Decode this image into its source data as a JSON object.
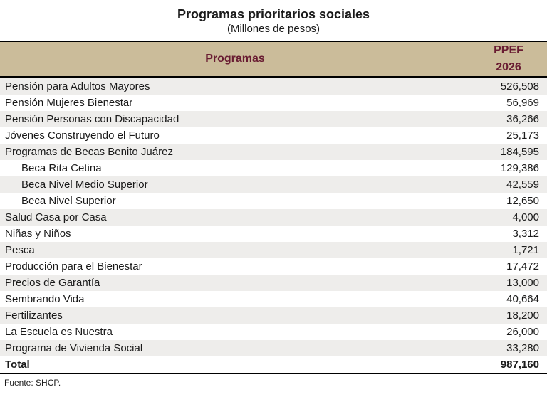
{
  "title": "Programas prioritarios sociales",
  "subtitle": "(Millones de pesos)",
  "table": {
    "header": {
      "programs_label": "Programas",
      "value_label_line1": "PPEF",
      "value_label_line2": "2026"
    },
    "rows": [
      {
        "label": "Pensión para Adultos Mayores",
        "value": "526,508",
        "indent": false
      },
      {
        "label": "Pensión Mujeres Bienestar",
        "value": "56,969",
        "indent": false
      },
      {
        "label": "Pensión Personas con Discapacidad",
        "value": "36,266",
        "indent": false
      },
      {
        "label": "Jóvenes Construyendo el Futuro",
        "value": "25,173",
        "indent": false
      },
      {
        "label": "Programas de Becas Benito Juárez",
        "value": "184,595",
        "indent": false
      },
      {
        "label": "Beca Rita Cetina",
        "value": "129,386",
        "indent": true
      },
      {
        "label": "Beca Nivel Medio Superior",
        "value": "42,559",
        "indent": true
      },
      {
        "label": "Beca Nivel Superior",
        "value": "12,650",
        "indent": true
      },
      {
        "label": "Salud Casa por Casa",
        "value": "4,000",
        "indent": false
      },
      {
        "label": "Niñas y Niños",
        "value": "3,312",
        "indent": false
      },
      {
        "label": "Pesca",
        "value": "1,721",
        "indent": false
      },
      {
        "label": "Producción para el Bienestar",
        "value": "17,472",
        "indent": false
      },
      {
        "label": "Precios de Garantía",
        "value": "13,000",
        "indent": false
      },
      {
        "label": "Sembrando Vida",
        "value": "40,664",
        "indent": false
      },
      {
        "label": "Fertilizantes",
        "value": "18,200",
        "indent": false
      },
      {
        "label": "La Escuela es Nuestra",
        "value": "26,000",
        "indent": false
      },
      {
        "label": "Programa de Vivienda Social",
        "value": "33,280",
        "indent": false
      }
    ],
    "total": {
      "label": "Total",
      "value": "987,160"
    }
  },
  "footer": {
    "source": "Fuente: SHCP."
  },
  "colors": {
    "header_bg": "#cbbc9a",
    "header_text": "#691c32",
    "stripe_row": "#eeedeb",
    "border": "#000000",
    "body_text": "#1a1a1a"
  },
  "chart_data": {
    "type": "table",
    "title": "Programas prioritarios sociales",
    "subtitle": "(Millones de pesos)",
    "columns": [
      "Programas",
      "PPEF 2026"
    ],
    "categories": [
      "Pensión para Adultos Mayores",
      "Pensión Mujeres Bienestar",
      "Pensión Personas con Discapacidad",
      "Jóvenes Construyendo el Futuro",
      "Programas de Becas Benito Juárez",
      "Beca Rita Cetina",
      "Beca Nivel Medio Superior",
      "Beca Nivel Superior",
      "Salud Casa por Casa",
      "Niñas y Niños",
      "Pesca",
      "Producción para el Bienestar",
      "Precios de Garantía",
      "Sembrando Vida",
      "Fertilizantes",
      "La Escuela es Nuestra",
      "Programa de Vivienda Social"
    ],
    "values": [
      526508,
      56969,
      36266,
      25173,
      184595,
      129386,
      42559,
      12650,
      4000,
      3312,
      1721,
      17472,
      13000,
      40664,
      18200,
      26000,
      33280
    ],
    "subitems_of_parent": {
      "Programas de Becas Benito Juárez": [
        "Beca Rita Cetina",
        "Beca Nivel Medio Superior",
        "Beca Nivel Superior"
      ]
    },
    "total": 987160,
    "source": "Fuente: SHCP."
  }
}
